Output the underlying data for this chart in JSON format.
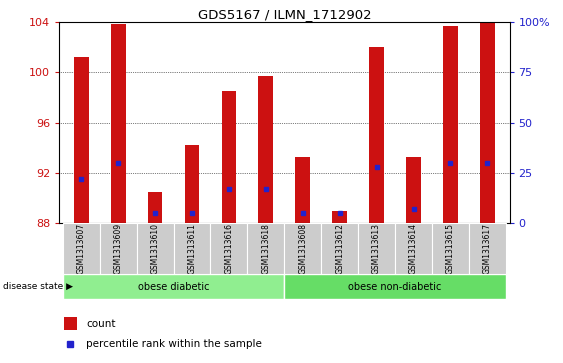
{
  "title": "GDS5167 / ILMN_1712902",
  "samples": [
    "GSM1313607",
    "GSM1313609",
    "GSM1313610",
    "GSM1313611",
    "GSM1313616",
    "GSM1313618",
    "GSM1313608",
    "GSM1313612",
    "GSM1313613",
    "GSM1313614",
    "GSM1313615",
    "GSM1313617"
  ],
  "counts": [
    101.2,
    103.8,
    90.5,
    94.2,
    98.5,
    99.7,
    93.3,
    89.0,
    102.0,
    93.3,
    103.7,
    104.1
  ],
  "percentile_ranks": [
    22,
    30,
    5,
    5,
    17,
    17,
    5,
    5,
    28,
    7,
    30,
    30
  ],
  "bar_color": "#cc1111",
  "marker_color": "#2222cc",
  "ylim_left": [
    88,
    104
  ],
  "yticks_left": [
    88,
    92,
    96,
    100,
    104
  ],
  "ylim_right": [
    0,
    100
  ],
  "yticks_right": [
    0,
    25,
    50,
    75,
    100
  ],
  "groups": [
    {
      "label": "obese diabetic",
      "start": 0,
      "end": 6,
      "color": "#90ee90"
    },
    {
      "label": "obese non-diabetic",
      "start": 6,
      "end": 12,
      "color": "#66dd66"
    }
  ],
  "disease_state_label": "disease state",
  "legend_count_label": "count",
  "legend_percentile_label": "percentile rank within the sample",
  "bar_width": 0.4,
  "group_bg_color": "#90ee90",
  "tick_label_bg": "#cccccc"
}
